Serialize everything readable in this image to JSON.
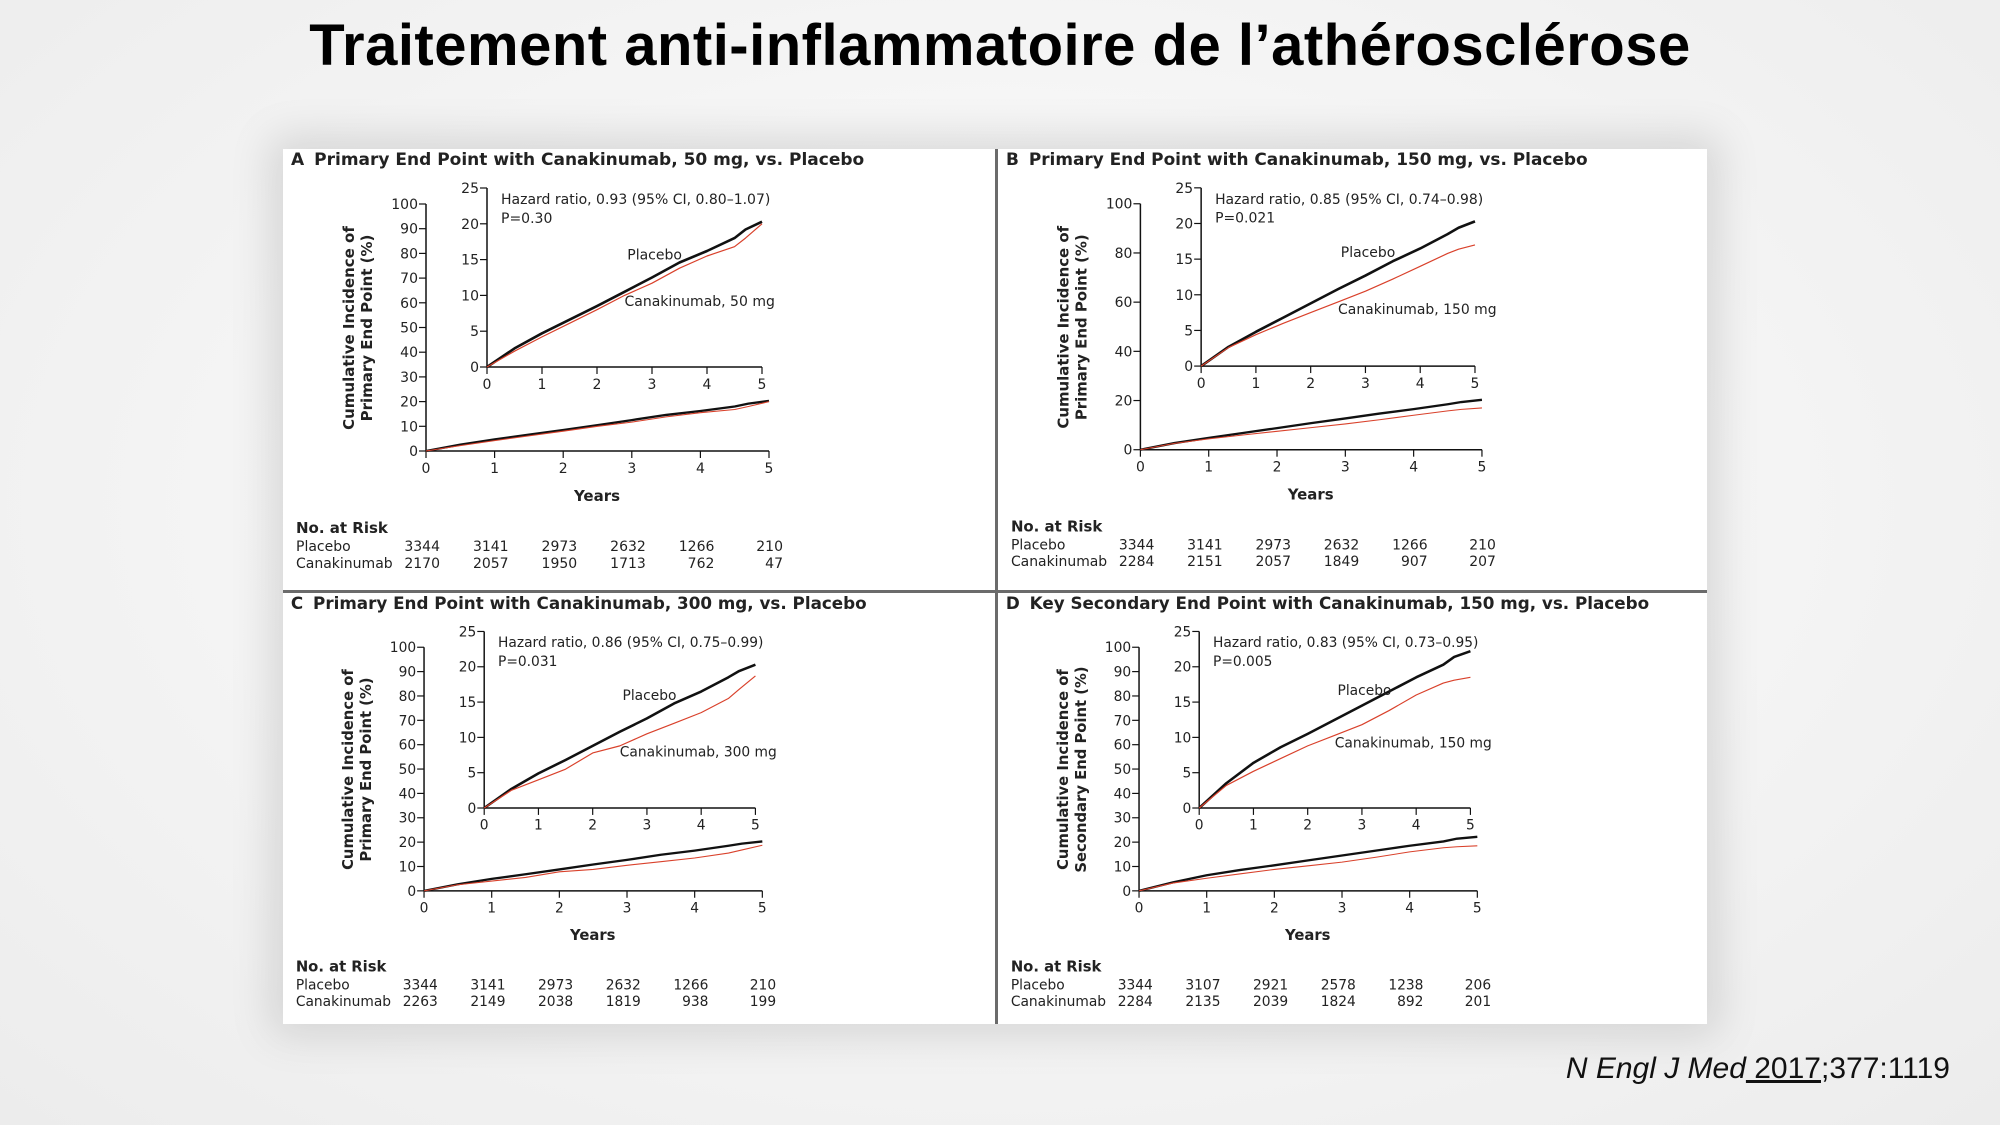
{
  "slide": {
    "title": "Traitement anti-inflammatoire de l’athérosclérose",
    "citation": {
      "journal": "N Engl J Med",
      "year": " 2017",
      "rest": ";377:1119"
    }
  },
  "colors": {
    "placebo": "#111111",
    "canakinumab": "#d9412b"
  },
  "chart_data": [
    {
      "type": "line",
      "panel": "A",
      "title": "Primary End Point with Canakinumab, 50 mg, vs. Placebo",
      "ylabel_line1": "Cumulative Incidence of",
      "ylabel_line2": "Primary End Point (%)",
      "xlabel": "Years",
      "ylim": [
        0,
        100
      ],
      "yticks": [
        "0",
        "10",
        "20",
        "30",
        "40",
        "50",
        "60",
        "70",
        "80",
        "90",
        "100"
      ],
      "xticks": [
        "0",
        "1",
        "2",
        "3",
        "4",
        "5"
      ],
      "xlim": [
        0,
        5
      ],
      "inset": {
        "ylim": [
          0,
          25
        ],
        "yticks": [
          "0",
          "5",
          "10",
          "15",
          "20",
          "25"
        ],
        "xticks": [
          "0",
          "1",
          "2",
          "3",
          "4",
          "5"
        ]
      },
      "hazard_text": "Hazard ratio, 0.93 (95% CI, 0.80–1.07)",
      "p_text": "P=0.30",
      "x": [
        0,
        0.5,
        1,
        1.5,
        2,
        2.5,
        3,
        3.5,
        4,
        4.5,
        4.7,
        5
      ],
      "series": [
        {
          "name": "Placebo",
          "values": [
            0,
            2.6,
            4.7,
            6.6,
            8.5,
            10.5,
            12.5,
            14.6,
            16.2,
            18.0,
            19.2,
            20.3
          ]
        },
        {
          "name": "Canakinumab, 50 mg",
          "values": [
            0,
            2.2,
            4.2,
            6.1,
            8.0,
            10.0,
            11.7,
            13.8,
            15.5,
            16.8,
            18.0,
            20.0
          ]
        }
      ],
      "risk_table": {
        "heading": "No. at Risk",
        "rows": [
          {
            "label": "Placebo",
            "values": [
              "3344",
              "3141",
              "2973",
              "2632",
              "1266",
              "210"
            ]
          },
          {
            "label": "Canakinumab",
            "values": [
              "2170",
              "2057",
              "1950",
              "1713",
              "762",
              "47"
            ]
          }
        ]
      }
    },
    {
      "type": "line",
      "panel": "B",
      "title": "Primary End Point with Canakinumab, 150 mg, vs. Placebo",
      "ylabel_line1": "Cumulative Incidence of",
      "ylabel_line2": "Primary End Point (%)",
      "xlabel": "Years",
      "ylim": [
        0,
        100
      ],
      "yticks": [
        "0",
        "20",
        "40",
        "60",
        "80",
        "100"
      ],
      "xticks": [
        "0",
        "1",
        "2",
        "3",
        "4",
        "5"
      ],
      "xlim": [
        0,
        5
      ],
      "inset": {
        "ylim": [
          0,
          25
        ],
        "yticks": [
          "0",
          "5",
          "10",
          "15",
          "20",
          "25"
        ],
        "xticks": [
          "0",
          "1",
          "2",
          "3",
          "4",
          "5"
        ]
      },
      "hazard_text": "Hazard ratio, 0.85 (95% CI, 0.74–0.98)",
      "p_text": "P=0.021",
      "x": [
        0,
        0.5,
        1,
        1.5,
        2,
        2.5,
        3,
        3.5,
        4,
        4.5,
        4.7,
        5
      ],
      "series": [
        {
          "name": "Placebo",
          "values": [
            0,
            2.7,
            4.8,
            6.8,
            8.8,
            10.8,
            12.7,
            14.7,
            16.5,
            18.5,
            19.4,
            20.3
          ]
        },
        {
          "name": "Canakinumab, 150 mg",
          "values": [
            0,
            2.6,
            4.4,
            6.0,
            7.5,
            9.0,
            10.5,
            12.2,
            14.0,
            15.8,
            16.4,
            17.0
          ]
        }
      ],
      "risk_table": {
        "heading": "No. at Risk",
        "rows": [
          {
            "label": "Placebo",
            "values": [
              "3344",
              "3141",
              "2973",
              "2632",
              "1266",
              "210"
            ]
          },
          {
            "label": "Canakinumab",
            "values": [
              "2284",
              "2151",
              "2057",
              "1849",
              "907",
              "207"
            ]
          }
        ]
      }
    },
    {
      "type": "line",
      "panel": "C",
      "title": "Primary End Point with Canakinumab, 300 mg, vs. Placebo",
      "ylabel_line1": "Cumulative Incidence of",
      "ylabel_line2": "Primary End Point (%)",
      "xlabel": "Years",
      "ylim": [
        0,
        100
      ],
      "yticks": [
        "0",
        "10",
        "20",
        "30",
        "40",
        "50",
        "60",
        "70",
        "80",
        "90",
        "100"
      ],
      "xticks": [
        "0",
        "1",
        "2",
        "3",
        "4",
        "5"
      ],
      "xlim": [
        0,
        5
      ],
      "inset": {
        "ylim": [
          0,
          25
        ],
        "yticks": [
          "0",
          "5",
          "10",
          "15",
          "20",
          "25"
        ],
        "xticks": [
          "0",
          "1",
          "2",
          "3",
          "4",
          "5"
        ]
      },
      "hazard_text": "Hazard ratio, 0.86 (95% CI, 0.75–0.99)",
      "p_text": "P=0.031",
      "x": [
        0,
        0.5,
        1,
        1.5,
        2,
        2.5,
        3,
        3.5,
        4,
        4.5,
        4.7,
        5
      ],
      "series": [
        {
          "name": "Placebo",
          "values": [
            0,
            2.7,
            4.9,
            6.8,
            8.8,
            10.8,
            12.7,
            14.8,
            16.5,
            18.5,
            19.4,
            20.3
          ]
        },
        {
          "name": "Canakinumab, 300 mg",
          "values": [
            0,
            2.5,
            4.0,
            5.5,
            7.8,
            8.8,
            10.5,
            12.0,
            13.5,
            15.5,
            16.8,
            18.7
          ]
        }
      ],
      "risk_table": {
        "heading": "No. at Risk",
        "rows": [
          {
            "label": "Placebo",
            "values": [
              "3344",
              "3141",
              "2973",
              "2632",
              "1266",
              "210"
            ]
          },
          {
            "label": "Canakinumab",
            "values": [
              "2263",
              "2149",
              "2038",
              "1819",
              "938",
              "199"
            ]
          }
        ]
      }
    },
    {
      "type": "line",
      "panel": "D",
      "title": "Key Secondary End Point with Canakinumab, 150 mg, vs. Placebo",
      "ylabel_line1": "Cumulative Incidence of",
      "ylabel_line2": "Secondary End Point (%)",
      "xlabel": "Years",
      "ylim": [
        0,
        100
      ],
      "yticks": [
        "0",
        "10",
        "20",
        "30",
        "40",
        "50",
        "60",
        "70",
        "80",
        "90",
        "100"
      ],
      "xticks": [
        "0",
        "1",
        "2",
        "3",
        "4",
        "5"
      ],
      "xlim": [
        0,
        5
      ],
      "inset": {
        "ylim": [
          0,
          25
        ],
        "yticks": [
          "0",
          "5",
          "10",
          "15",
          "20",
          "25"
        ],
        "xticks": [
          "0",
          "1",
          "2",
          "3",
          "4",
          "5"
        ]
      },
      "hazard_text": "Hazard ratio, 0.83 (95% CI, 0.73–0.95)",
      "p_text": "P=0.005",
      "x": [
        0,
        0.5,
        1,
        1.5,
        2,
        2.5,
        3,
        3.5,
        4,
        4.5,
        4.7,
        5
      ],
      "series": [
        {
          "name": "Placebo",
          "values": [
            0,
            3.5,
            6.4,
            8.6,
            10.5,
            12.5,
            14.5,
            16.5,
            18.5,
            20.3,
            21.4,
            22.2
          ]
        },
        {
          "name": "Canakinumab, 150 mg",
          "values": [
            0,
            3.2,
            5.2,
            7.0,
            8.8,
            10.3,
            11.8,
            13.8,
            16.0,
            17.7,
            18.1,
            18.5
          ]
        }
      ],
      "risk_table": {
        "heading": "No. at Risk",
        "rows": [
          {
            "label": "Placebo",
            "values": [
              "3344",
              "3107",
              "2921",
              "2578",
              "1238",
              "206"
            ]
          },
          {
            "label": "Canakinumab",
            "values": [
              "2284",
              "2135",
              "2039",
              "1824",
              "892",
              "201"
            ]
          }
        ]
      }
    }
  ]
}
